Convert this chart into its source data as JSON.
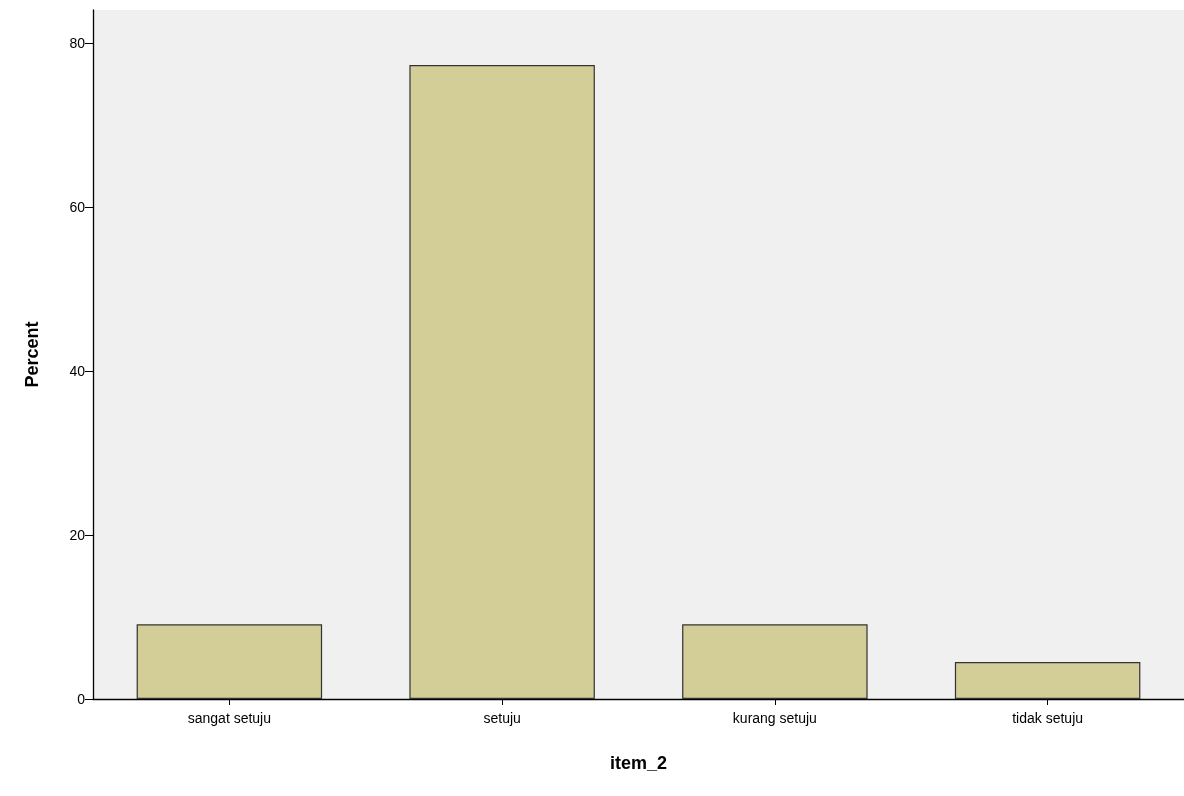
{
  "chart_data": {
    "type": "bar",
    "xlabel": "item_2",
    "ylabel": "Percent",
    "categories": [
      "sangat setuju",
      "setuju",
      "kurang setuju",
      "tidak setuju"
    ],
    "values": [
      9.1,
      77.3,
      9.1,
      4.5
    ],
    "color": "#d3ce97",
    "ylim": [
      0,
      84
    ],
    "yticks": [
      0,
      20,
      40,
      60,
      80
    ],
    "grid": false
  }
}
